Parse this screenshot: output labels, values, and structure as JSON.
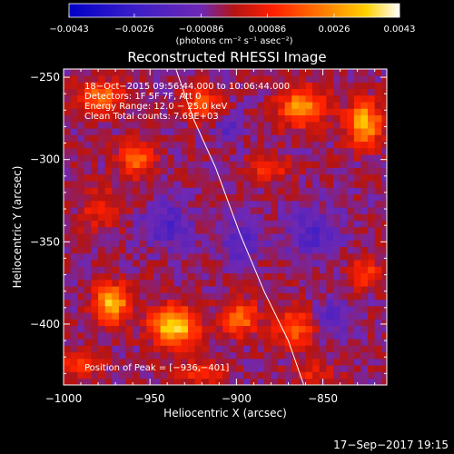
{
  "chart_data": {
    "type": "heatmap",
    "title": "Reconstructed RHESSI Image",
    "xlabel": "Heliocentric X (arcsec)",
    "ylabel": "Heliocentric Y (arcsec)",
    "xlim": [
      -1000,
      -813
    ],
    "ylim": [
      -437,
      -245
    ],
    "x_ticks": [
      -1000,
      -950,
      -900,
      -850
    ],
    "x_tick_labels": [
      "−1000",
      "−950",
      "−900",
      "−850"
    ],
    "y_ticks": [
      -400,
      -350,
      -300,
      -250
    ],
    "y_tick_labels": [
      "−400",
      "−350",
      "−300",
      "−250"
    ],
    "colorbar": {
      "range": [
        -0.0043,
        0.0043
      ],
      "ticks": [
        -0.0043,
        -0.0026,
        -0.00086,
        0.00086,
        0.0026,
        0.0043
      ],
      "tick_labels": [
        "−0.0043",
        "−0.0026",
        "−0.00086",
        "0.00086",
        "0.0026",
        "0.0043"
      ],
      "units_label": "(photons cm⁻² s⁻¹ asec⁻²)"
    },
    "annotations": [
      "18−Oct−2015 09:56:44.000 to 10:06:44.000",
      "Detectors: 1F 5F 7F, Att 0",
      "Energy Range: 12.0 − 25.0 keV",
      "Clean    Total counts: 7.69E+03"
    ],
    "peak_label": "Position of Peak = [−936,−401]",
    "peak": [
      -936,
      -401
    ],
    "limb_curve": [
      [
        -935,
        -245
      ],
      [
        -925,
        -275
      ],
      [
        -912,
        -305
      ],
      [
        -898,
        -345
      ],
      [
        -884,
        -380
      ],
      [
        -870,
        -410
      ],
      [
        -861,
        -437
      ]
    ],
    "sources": [
      {
        "x": -936,
        "y": -401,
        "sx": 9,
        "sy": 8,
        "amp": 0.0043
      },
      {
        "x": -972,
        "y": -387,
        "sx": 7,
        "sy": 8,
        "amp": 0.0036
      },
      {
        "x": -958,
        "y": -300,
        "sx": 7,
        "sy": 7,
        "amp": 0.0024
      },
      {
        "x": -978,
        "y": -262,
        "sx": 9,
        "sy": 7,
        "amp": 0.0025
      },
      {
        "x": -920,
        "y": -265,
        "sx": 7,
        "sy": 7,
        "amp": 0.0022
      },
      {
        "x": -862,
        "y": -268,
        "sx": 9,
        "sy": 8,
        "amp": 0.0031
      },
      {
        "x": -826,
        "y": -278,
        "sx": 7,
        "sy": 9,
        "amp": 0.0036
      },
      {
        "x": -882,
        "y": -305,
        "sx": 8,
        "sy": 6,
        "amp": 0.0016
      },
      {
        "x": -898,
        "y": -396,
        "sx": 7,
        "sy": 7,
        "amp": 0.0026
      },
      {
        "x": -866,
        "y": -402,
        "sx": 8,
        "sy": 8,
        "amp": 0.0022
      },
      {
        "x": -826,
        "y": -368,
        "sx": 6,
        "sy": 7,
        "amp": 0.0017
      },
      {
        "x": -978,
        "y": -330,
        "sx": 8,
        "sy": 8,
        "amp": 0.0014
      },
      {
        "x": -990,
        "y": -425,
        "sx": 8,
        "sy": 6,
        "amp": 0.0015
      },
      {
        "x": -922,
        "y": -430,
        "sx": 10,
        "sy": 6,
        "amp": 0.0014
      },
      {
        "x": -855,
        "y": -430,
        "sx": 9,
        "sy": 5,
        "amp": 0.0012
      },
      {
        "x": -940,
        "y": -340,
        "sx": 10,
        "sy": 9,
        "amp": -0.0016
      },
      {
        "x": -898,
        "y": -350,
        "sx": 9,
        "sy": 9,
        "amp": -0.0013
      },
      {
        "x": -855,
        "y": -345,
        "sx": 10,
        "sy": 10,
        "amp": -0.0015
      },
      {
        "x": -845,
        "y": -395,
        "sx": 8,
        "sy": 7,
        "amp": -0.0012
      },
      {
        "x": -905,
        "y": -282,
        "sx": 6,
        "sy": 6,
        "amp": -0.001
      }
    ],
    "background": -0.0004
  },
  "timestamp": "17−Sep−2017 19:15"
}
